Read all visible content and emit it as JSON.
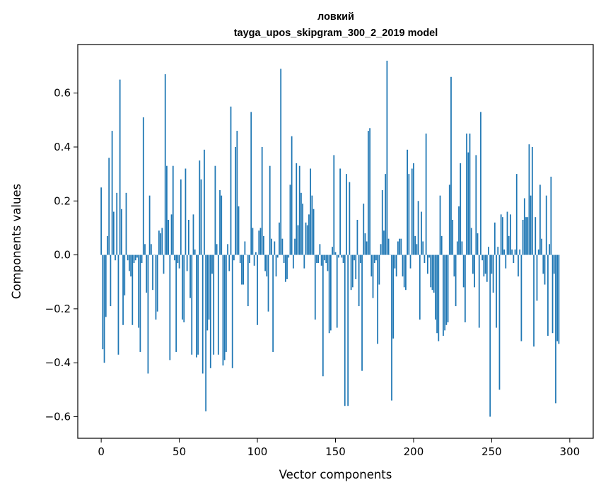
{
  "chart_data": {
    "type": "bar",
    "title": "ловкий",
    "subtitle": "tayga_upos_skipgram_300_2_2019 model",
    "xlabel": "Vector components",
    "ylabel": "Components values",
    "xlim": [
      -15,
      315
    ],
    "ylim": [
      -0.68,
      0.78
    ],
    "xticks": [
      0,
      50,
      100,
      150,
      200,
      250,
      300
    ],
    "yticks": [
      -0.6,
      -0.4,
      -0.2,
      0.0,
      0.2,
      0.4,
      0.6
    ],
    "ytick_labels": [
      "−0.6",
      "−0.4",
      "−0.2",
      "0.0",
      "0.2",
      "0.4",
      "0.6"
    ],
    "xtick_labels": [
      "0",
      "50",
      "100",
      "150",
      "200",
      "250",
      "300"
    ],
    "bar_color": "#1f77b4",
    "values": [
      0.25,
      -0.35,
      -0.4,
      -0.23,
      0.07,
      0.36,
      -0.19,
      0.46,
      0.16,
      -0.02,
      0.23,
      -0.37,
      0.65,
      0.17,
      -0.26,
      -0.15,
      0.23,
      -0.02,
      -0.06,
      -0.08,
      -0.26,
      -0.03,
      -0.02,
      -0.01,
      -0.27,
      -0.36,
      -0.03,
      0.51,
      0.04,
      -0.14,
      -0.44,
      0.22,
      0.04,
      -0.13,
      0.0,
      -0.24,
      -0.21,
      0.09,
      0.08,
      0.1,
      -0.07,
      0.67,
      0.33,
      0.13,
      -0.39,
      0.15,
      0.33,
      -0.02,
      -0.36,
      -0.03,
      -0.05,
      0.28,
      -0.24,
      -0.25,
      0.32,
      -0.06,
      0.13,
      -0.16,
      -0.37,
      0.15,
      0.02,
      -0.38,
      -0.37,
      0.35,
      0.28,
      -0.44,
      0.39,
      -0.58,
      -0.28,
      -0.24,
      -0.42,
      -0.07,
      -0.37,
      0.33,
      0.04,
      -0.37,
      0.24,
      0.22,
      -0.41,
      -0.39,
      -0.36,
      0.04,
      -0.06,
      0.55,
      -0.42,
      -0.02,
      0.4,
      0.46,
      0.18,
      -0.03,
      -0.11,
      -0.11,
      0.05,
      0.0,
      -0.19,
      -0.03,
      0.53,
      0.1,
      -0.04,
      0.01,
      -0.26,
      0.09,
      0.1,
      0.4,
      0.07,
      -0.06,
      -0.08,
      -0.21,
      0.33,
      0.06,
      -0.36,
      0.05,
      -0.08,
      -0.01,
      0.12,
      0.69,
      0.06,
      -0.03,
      -0.1,
      -0.09,
      -0.01,
      0.26,
      0.44,
      -0.05,
      0.06,
      0.34,
      0.11,
      0.33,
      0.23,
      0.19,
      -0.05,
      0.12,
      0.11,
      0.15,
      0.32,
      0.22,
      0.17,
      -0.24,
      -0.03,
      -0.03,
      0.04,
      -0.04,
      -0.45,
      -0.02,
      -0.03,
      -0.06,
      -0.29,
      -0.28,
      0.03,
      0.37,
      0.01,
      -0.27,
      -0.01,
      0.32,
      -0.01,
      -0.03,
      -0.56,
      0.3,
      -0.56,
      0.27,
      -0.13,
      -0.12,
      -0.02,
      -0.09,
      0.13,
      -0.19,
      -0.03,
      -0.43,
      0.19,
      0.08,
      0.05,
      0.46,
      0.47,
      -0.08,
      -0.16,
      -0.03,
      -0.02,
      -0.33,
      -0.11,
      0.04,
      0.24,
      0.09,
      0.3,
      0.72,
      0.06,
      0.0,
      -0.54,
      -0.31,
      -0.05,
      -0.08,
      0.05,
      0.06,
      0.06,
      -0.08,
      -0.12,
      -0.13,
      0.39,
      0.3,
      -0.05,
      0.32,
      0.34,
      0.07,
      0.04,
      0.2,
      -0.24,
      0.16,
      0.05,
      -0.03,
      0.45,
      -0.07,
      -0.01,
      -0.12,
      -0.13,
      -0.14,
      -0.24,
      -0.29,
      -0.32,
      0.22,
      0.07,
      -0.3,
      -0.28,
      -0.26,
      -0.25,
      0.26,
      0.66,
      0.13,
      -0.08,
      -0.19,
      0.05,
      0.18,
      0.34,
      0.05,
      -0.12,
      -0.25,
      0.45,
      0.38,
      0.45,
      0.1,
      -0.07,
      -0.12,
      0.37,
      0.08,
      -0.27,
      0.53,
      -0.02,
      -0.08,
      -0.07,
      -0.1,
      0.03,
      -0.6,
      -0.07,
      -0.14,
      0.12,
      -0.27,
      0.03,
      -0.5,
      0.15,
      0.14,
      0.02,
      -0.05,
      0.16,
      0.07,
      0.15,
      0.02,
      -0.03,
      0.02,
      0.3,
      -0.08,
      0.02,
      -0.32,
      0.13,
      0.21,
      0.14,
      0.14,
      0.41,
      0.22,
      0.4,
      -0.34,
      0.14,
      -0.17,
      0.02,
      0.26,
      0.06,
      -0.07,
      -0.11,
      0.22,
      -0.3,
      0.04,
      0.29,
      -0.29,
      -0.07,
      -0.55,
      -0.32,
      -0.33
    ]
  }
}
